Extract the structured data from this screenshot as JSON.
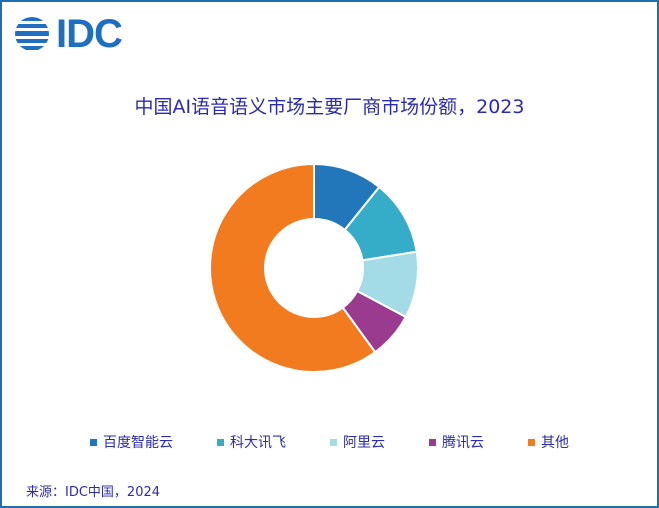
{
  "logo": {
    "text": "IDC",
    "color": "#1f6fc0"
  },
  "title": "中国AI语音语义市场主要厂商市场份额，2023",
  "source": "来源：IDC中国，2024",
  "chart_data": {
    "type": "pie",
    "subtype": "donut",
    "title": "中国AI语音语义市场主要厂商市场份额，2023",
    "categories": [
      "百度智能云",
      "科大讯飞",
      "阿里云",
      "腾讯云",
      "其他"
    ],
    "values": [
      10.8,
      11.7,
      10.3,
      7.2,
      60.0
    ],
    "unit": "%",
    "colors": [
      "#2277bb",
      "#35acc8",
      "#a3dbe6",
      "#9b3b8f",
      "#f27b20"
    ],
    "legend_position": "bottom",
    "center": [
      314,
      268
    ],
    "outer_radius": 104,
    "inner_radius": 49
  },
  "legend": [
    {
      "label": "百度智能云",
      "color": "#2277bb"
    },
    {
      "label": "科大讯飞",
      "color": "#35acc8"
    },
    {
      "label": "阿里云",
      "color": "#a3dbe6"
    },
    {
      "label": "腾讯云",
      "color": "#9b3b8f"
    },
    {
      "label": "其他",
      "color": "#f27b20"
    }
  ]
}
